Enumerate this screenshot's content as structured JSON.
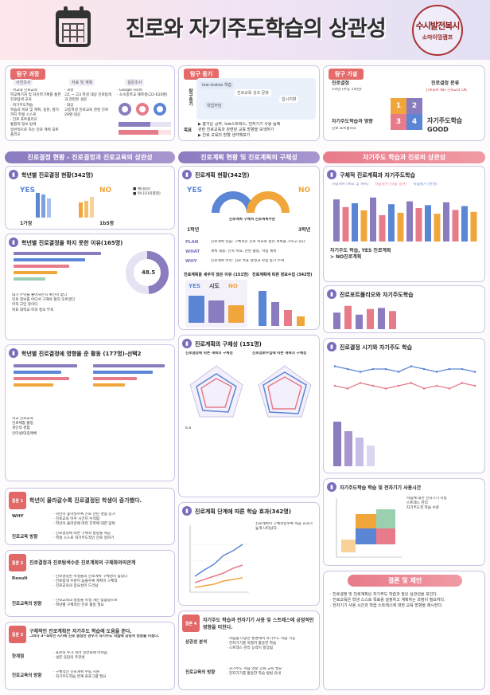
{
  "header": {
    "title": "진로와 자기주도학습의 상관성",
    "seal_line1": "수시발전복시",
    "seal_line2": "소마이밍캠프"
  },
  "colors": {
    "accent_purple": "#8b7bbf",
    "accent_pink": "#e77b8a",
    "accent_orange": "#f0a63a",
    "accent_blue": "#5b86d6"
  },
  "explore_process": {
    "label": "탐구 과정",
    "steps": [
      "사전조사",
      "자료 및 계획",
      "설문조사"
    ],
    "col1": [
      "· 학교내 진로교육",
      "  학교특기자 및 자유학기제를 통한 진로탐색 교육",
      "· 자기주도학습",
      "  학습의 목표 및 계획, 실천, 평가까지 학생 스스로",
      "· 진로 포트폴리오",
      "  통합적 정보 탐색",
      "  일반적으로 하는 진로 계획 포트폴리오"
    ],
    "col2": [
      "· 과정",
      "  고1 ~ 고3 학생 대상 진로탐색과 관련된 설문",
      "· 대상",
      "  고등학생 진로교육 관련 진로",
      "29명 대상"
    ],
    "col3": [
      "· Google Form",
      "· 소속중학교 재학생(고2-620명)"
    ],
    "pies": [
      "74%",
      "60%",
      "51%",
      "15%",
      "45%",
      "31%",
      "96%"
    ]
  },
  "explore_motive": {
    "label": "탐구 동기",
    "left_label": "탐구동기",
    "bubbles": [
      "low-stakes 학습",
      "진로교육 강조 문화",
      "학업부담",
      "입시지향"
    ],
    "goal_label": "목표",
    "lines": [
      "▶ 흥거운 공부, low스트레스, 전자기기 사용 등에",
      "관련 진로교육과 관련된 교육 방향을 모색하기",
      "▶ 진로 교육의 방향 생각해보기"
    ]
  },
  "explore_hypothesis": {
    "label": "탐구 가설",
    "items": [
      "진로결정",
      "1학년 (수능 1학년)",
      "진로결정 분류",
      "진로포트 NO 진로교육 OK",
      "자기주도학습과 영향",
      "진로 포트폴리오",
      "자기주도학습 GOOD"
    ],
    "nums": [
      "1",
      "2",
      "3",
      "4"
    ]
  },
  "section_heads": [
    "진로결정 현황 - 진로결정과 진로교육의 상관성",
    "진로계획 현황 및 진로계획의 구체성",
    "자기주도 학습과 진로의 상관성"
  ],
  "col1": {
    "q1": {
      "title": "학년별 진로결정 현황(342명)",
      "yes": "YES",
      "no": "NO",
      "left_vals": [
        "62.5",
        "58.4",
        "48.6"
      ],
      "right_vals": [
        "37.5",
        "41.6",
        "51.4"
      ],
      "grade_left": "1가정",
      "grade_right": "1b5명",
      "legend": [
        "■ 예(결정)",
        "■ 아니오(미결정)"
      ]
    },
    "q2": {
      "title": "학년별 진로결정을 하지 못한 이유(165명)",
      "pct": "48.5",
      "texts": [
        "내가 무엇을 좋아하는지 확신이 없다",
        "진로 정보를 어디서 구해야 할지 모르겠다",
        "아직 고민 중이다",
        "목표 대학교·학과 정보 부족"
      ]
    },
    "q3": {
      "title": "학년별 진로결정에 영향을 준 활동 (177명)-선택2",
      "texts": [
        "학교 진로교육",
        "진로체험 활동",
        "개인적 경험",
        "인터넷/대중매체"
      ]
    },
    "c1": {
      "num": "결론 1",
      "title": "학년이 올라갈수록 진로결정된 학생이 증가했다.",
      "why_label": "WHY",
      "why": [
        "· 학년이 높아질수록 진로 관련 경험 증가",
        "· 진로교육 이수 시간이 누적됨",
        "· 학년이 올라감에 따라 진학에 대한 압박"
      ],
      "dir_label": "진로교육 방향",
      "dir": [
        "· 진로결정에 따른 구체적 방향을 제공",
        "· 학생 스스로 자기주도적인 진로 정하기"
      ]
    },
    "c2": {
      "num": "결론 2",
      "title": "진로결정과 진로탐색수준 진로계획의 구체화와의관계",
      "res_label": "Result",
      "res": [
        "· 진로결정된 학생들의 진로계획 구체성이 높았다",
        "· 진로탐색 수준이 높을수록 계획이 구체적",
        "· 진로교육의 중요성이 드러남"
      ],
      "dir_label": "진로교육의 방향",
      "dir": [
        "· 진로교육의 방향을 학생 개인 맞춤형으로",
        "· 학년별 구체적인 진로 활동 필요"
      ]
    },
    "c3": {
      "num": "결론 3",
      "title": "구체적인 진로계획은 자기주도 학습에 도움을 준다.",
      "sub": "그러나 3~4학년 시기에 진로 결정한 경우가 자기주도 학습에 긍정적 영향을 미쳤다.",
      "lim_label": "한계점",
      "lim": [
        "· 표본의 수가 적어 일반화에 어려움",
        "· 설문 응답의 주관성"
      ],
      "dir_label": "진로교육의 방향",
      "dir": [
        "· 구체적인 진로계획 수립 지원",
        "· 자기주도학습 연계 프로그램 필요"
      ]
    }
  },
  "col2": {
    "q1": {
      "title": "진로계획 현황(342명)",
      "yes": "YES",
      "no": "NO",
      "vals_left": [
        "55.8",
        "46.3",
        "51.8"
      ],
      "vals_right": [
        "44.2",
        "53.7",
        "48.2"
      ],
      "center": "진로계획 구체적 진로계획수준",
      "grade_left": "1학년",
      "grade_right": "3학년"
    },
    "plan_rows": [
      {
        "label": "PLAN",
        "text": "진로계획 있음: 구체적인 진로 목표와 실천 계획을 가지고 있다"
      },
      {
        "label": "WHAT",
        "text": "계획 내용: 진학 목표, 관련 활동, 학업 계획"
      },
      {
        "label": "WHY",
        "text": "진로계획 이유: 진로 목표 달성과 학업 동기 부여"
      }
    ],
    "plan_reason_title": "진로계획을 세우지 않은 이유 (151명)",
    "plan_info_title": "진로계획에 따른 정보수집 (342명)",
    "table_head": [
      "YES",
      "시도",
      "NO"
    ],
    "q2": {
      "title": "진로계획의 구체성 (151명)",
      "left": "진로결정에 따른 계획의 구체성",
      "right": "진로정보수집에 따른 계획의 구체성",
      "left_vals": [
        "6.6",
        "14.5",
        "57.2",
        "21.1"
      ],
      "right_vals": [
        "5.6",
        "20.9",
        "52.4",
        "21.1"
      ]
    },
    "q3": {
      "title": "진로계획 단계에 따른 학습 효과(342명)",
      "series": [
        "진로계획 단계별 학습 효과"
      ],
      "note": "진로계획이 구체적일수록 학습 효과가 높게 나타났다."
    },
    "c4": {
      "num": "결론 4",
      "title": "자기주도 학습과 전자기기 사용 및 스트레스에 긍정적인 영향을 미친다.",
      "cause_label": "상관성 분석",
      "cause": [
        "· 학습을 다양한 환경에서 자기주도 학습 가능",
        "· 전자기기를 적절히 활용한 학습",
        "· 스트레스 관리 능력이 향상됨"
      ],
      "dir_label": "진로교육의 방향",
      "dir": [
        "· 자기주도 학습 역량 강화 교육 필요",
        "· 전자기기를 활용한 학습 방법 안내"
      ]
    }
  },
  "col3": {
    "q1": {
      "title": "구체적 진로계획과 자기주도학습",
      "legend": [
        "학습계획 (복표 및 계획)",
        "학습실천 (학습 실천)",
        "학습평가 (반성)"
      ],
      "caption": "자기주도 학습, YES 진로계획 > NO진로계획",
      "vals": [
        88,
        72,
        80,
        65,
        92,
        55,
        78,
        60,
        84,
        70,
        76,
        58,
        82,
        66,
        74,
        62
      ]
    },
    "q2": {
      "title": "진로포트폴리오와 자기주도학습",
      "vals": [
        3.2,
        4.5,
        2.8,
        3.9,
        4.1,
        3.5
      ]
    },
    "q3": {
      "title": "진로결정 시기와 자기주도 학습",
      "x": [
        "1",
        "2",
        "3",
        "4",
        "5",
        "6",
        "7",
        "8",
        "9",
        "10",
        "11",
        "12"
      ],
      "series": [
        {
          "name": "결정",
          "values": [
            3.8,
            3.7,
            3.6,
            3.7,
            3.7,
            3.6,
            3.8,
            3.7,
            3.6,
            3.7,
            3.7,
            3.6
          ]
        },
        {
          "name": "미결정",
          "values": [
            3.1,
            3.0,
            3.2,
            3.1,
            3.0,
            3.1,
            3.2,
            3.0,
            3.1,
            3.0,
            3.2,
            3.1
          ]
        }
      ]
    },
    "q4": {
      "title": "자기주도학습 학습 및 전자기기 사용시간",
      "scatter_vals": [
        "3.41",
        "6.25",
        "5.89",
        "5.44",
        "4.84",
        "6.18"
      ],
      "texts": [
        "학습에 대한 전자기기 사용",
        "스트레스 관리",
        "자기주도적 학습 수준"
      ]
    },
    "concl": {
      "title": "결론 및 제언",
      "lines": [
        "· 진로결정 및 진로계획은 자기주도 학습과 높은 상관성을 보인다.",
        "· 진로교육은 학생 스스로 목표를 설정하고 계획하는 과정이 필요하다.",
        "· 전자기기 사용 시간과 학습 스트레스에 대한 교육 방향을 제시한다."
      ]
    }
  }
}
